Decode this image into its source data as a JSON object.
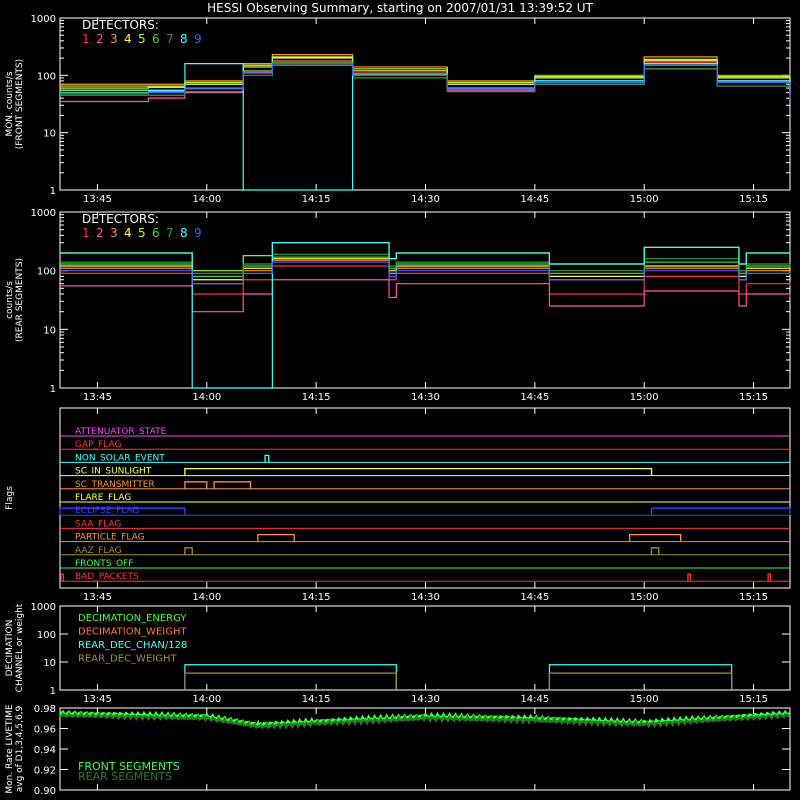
{
  "title": "HESSI Observing Summary, starting on 2007/01/31 13:39:52 UT",
  "time_ticks": [
    "13:45",
    "14:00",
    "14:15",
    "14:30",
    "14:45",
    "15:00",
    "15:15"
  ],
  "colors": {
    "det": [
      "#ff3040",
      "#ff4fb0",
      "#ff9030",
      "#ffff40",
      "#a0ff40",
      "#40d040",
      "#30a030",
      "#40ffff",
      "#4060ff"
    ]
  },
  "chart_data": [
    {
      "type": "line",
      "title": "",
      "ylabel": "MON. counts/s\n(FRONT SEGMENTS)",
      "ylog": true,
      "ylim": [
        1,
        1000
      ],
      "ytick_labels": [
        "1",
        "10",
        "100",
        "1000"
      ],
      "legend_title": "DETECTORS:",
      "legend": [
        "1",
        "2",
        "3",
        "4",
        "5",
        "6",
        "7",
        "8",
        "9"
      ],
      "x_unit": "UT",
      "x": [
        "13:39:52",
        "13:52",
        "13:57",
        "14:05",
        "14:09",
        "14:20",
        "14:33",
        "14:45",
        "15:00",
        "15:10",
        "15:20"
      ],
      "series": [
        {
          "name": "1",
          "values": [
            55,
            55,
            60,
            120,
            180,
            110,
            60,
            80,
            170,
            80,
            45
          ]
        },
        {
          "name": "2",
          "values": [
            35,
            40,
            50,
            110,
            150,
            90,
            55,
            70,
            130,
            65,
            38
          ]
        },
        {
          "name": "3",
          "values": [
            70,
            70,
            80,
            160,
            230,
            140,
            80,
            100,
            210,
            100,
            60
          ]
        },
        {
          "name": "4",
          "values": [
            60,
            62,
            70,
            140,
            200,
            120,
            70,
            90,
            180,
            90,
            50
          ]
        },
        {
          "name": "5",
          "values": [
            65,
            65,
            75,
            150,
            210,
            130,
            75,
            95,
            190,
            95,
            55
          ]
        },
        {
          "name": "6",
          "values": [
            50,
            52,
            60,
            120,
            170,
            105,
            60,
            80,
            150,
            75,
            45
          ]
        },
        {
          "name": "7",
          "values": [
            45,
            45,
            52,
            100,
            150,
            90,
            52,
            70,
            130,
            65,
            40
          ]
        },
        {
          "name": "8",
          "values": [
            55,
            55,
            160,
            1,
            1,
            100,
            60,
            80,
            160,
            80,
            45
          ]
        },
        {
          "name": "9",
          "values": [
            48,
            50,
            58,
            115,
            160,
            100,
            58,
            75,
            150,
            75,
            42
          ]
        }
      ]
    },
    {
      "type": "line",
      "title": "",
      "ylabel": "counts/s\n(REAR SEGMENTS)",
      "ylog": true,
      "ylim": [
        1,
        1000
      ],
      "ytick_labels": [
        "1",
        "10",
        "100",
        "1000"
      ],
      "legend_title": "DETECTORS:",
      "legend": [
        "1",
        "2",
        "3",
        "4",
        "5",
        "6",
        "7",
        "8",
        "9"
      ],
      "x_unit": "UT",
      "x": [
        "13:39:52",
        "13:57",
        "13:58",
        "14:05",
        "14:09",
        "14:25",
        "14:26",
        "14:46",
        "14:47",
        "15:00",
        "15:13",
        "15:14",
        "15:20"
      ],
      "series": [
        {
          "name": "1",
          "values": [
            90,
            90,
            40,
            70,
            120,
            70,
            90,
            90,
            40,
            80,
            40,
            60,
            55
          ]
        },
        {
          "name": "2",
          "values": [
            55,
            55,
            20,
            40,
            70,
            35,
            60,
            60,
            25,
            45,
            25,
            40,
            35
          ]
        },
        {
          "name": "3",
          "values": [
            110,
            110,
            60,
            100,
            150,
            90,
            110,
            110,
            70,
            110,
            70,
            100,
            90
          ]
        },
        {
          "name": "4",
          "values": [
            120,
            120,
            70,
            110,
            160,
            100,
            120,
            120,
            80,
            120,
            80,
            110,
            100
          ]
        },
        {
          "name": "5",
          "values": [
            200,
            200,
            100,
            180,
            300,
            160,
            200,
            200,
            130,
            250,
            130,
            200,
            180
          ]
        },
        {
          "name": "6",
          "values": [
            130,
            130,
            80,
            120,
            170,
            110,
            130,
            130,
            90,
            140,
            90,
            120,
            110
          ]
        },
        {
          "name": "7",
          "values": [
            140,
            140,
            90,
            130,
            190,
            120,
            140,
            140,
            100,
            160,
            100,
            130,
            120
          ]
        },
        {
          "name": "8",
          "values": [
            200,
            200,
            1,
            1,
            300,
            160,
            200,
            200,
            130,
            250,
            130,
            200,
            180
          ]
        },
        {
          "name": "9",
          "values": [
            100,
            100,
            60,
            90,
            140,
            80,
            100,
            100,
            70,
            100,
            70,
            90,
            85
          ]
        }
      ]
    },
    {
      "type": "flags",
      "ylabel": "Flags",
      "flags": [
        {
          "label": "ATTENUATOR_STATE",
          "color": "#ff40ff",
          "segments": []
        },
        {
          "label": "GAP_FLAG",
          "color": "#ff3040",
          "segments": []
        },
        {
          "label": "NON_SOLAR_EVENT",
          "color": "#40ffff",
          "segments": [
            [
              "14:08",
              "14:08:30"
            ]
          ]
        },
        {
          "label": "SC_IN_SUNLIGHT",
          "color": "#ffff40",
          "segments": [
            [
              "13:57",
              "15:01"
            ]
          ]
        },
        {
          "label": "SC_TRANSMITTER",
          "color": "#ff9030",
          "segments": [
            [
              "13:57",
              "14:00"
            ],
            [
              "14:01",
              "14:06"
            ]
          ]
        },
        {
          "label": "FLARE_FLAG",
          "color": "#ffff40",
          "segments": []
        },
        {
          "label": "ECLIPSE_FLAG",
          "color": "#3040ff",
          "segments": [
            [
              "13:39:52",
              "13:57"
            ],
            [
              "15:01",
              "15:20"
            ]
          ]
        },
        {
          "label": "SAA_FLAG",
          "color": "#ff3040",
          "segments": []
        },
        {
          "label": "PARTICLE_FLAG",
          "color": "#ff9030",
          "segments": [
            [
              "14:07",
              "14:12"
            ],
            [
              "14:58",
              "15:05"
            ]
          ]
        },
        {
          "label": "AAZ_FLAG",
          "color": "#a09030",
          "segments": [
            [
              "13:57",
              "13:58"
            ],
            [
              "15:01",
              "15:02"
            ]
          ]
        },
        {
          "label": "FRONTS_OFF",
          "color": "#40ff40",
          "segments": []
        },
        {
          "label": "BAD_PACKETS",
          "color": "#ff3040",
          "segments": [
            [
              "13:40",
              "13:40:20"
            ],
            [
              "15:06",
              "15:06:20"
            ],
            [
              "15:17",
              "15:17:20"
            ]
          ]
        }
      ]
    },
    {
      "type": "line",
      "ylabel": "DECIMATION\nCHANNEL or weight",
      "ylog": true,
      "ylim": [
        1,
        1000
      ],
      "ytick_labels": [
        "1",
        "10",
        "100",
        "1000"
      ],
      "legend": [
        {
          "name": "DECIMATION_ENERGY",
          "color": "#40ff40"
        },
        {
          "name": "DECIMATION_WEIGHT",
          "color": "#ff7040"
        },
        {
          "name": "REAR_DEC_CHAN/128",
          "color": "#40ffff"
        },
        {
          "name": "REAR_DEC_WEIGHT",
          "color": "#a09030"
        }
      ],
      "series": [
        {
          "name": "REAR_DEC_CHAN/128",
          "segments": [
            [
              "13:57",
              "14:26",
              8
            ],
            [
              "14:47",
              "15:12",
              8
            ]
          ]
        },
        {
          "name": "REAR_DEC_WEIGHT",
          "segments": [
            [
              "13:57",
              "14:26",
              4
            ],
            [
              "14:47",
              "15:12",
              4
            ]
          ]
        }
      ]
    },
    {
      "type": "line",
      "ylabel": "Mon. Rate LIVETIME\navg of D1,3,4,5,6,9",
      "ylim": [
        0.9,
        0.98
      ],
      "ytick_labels": [
        "0.90",
        "0.92",
        "0.94",
        "0.96",
        "0.98"
      ],
      "legend": [
        {
          "name": "FRONT SEGMENTS",
          "color": "#40ff40"
        },
        {
          "name": "REAR SEGMENTS",
          "color": "#208020"
        }
      ],
      "x": [
        "13:39:52",
        "14:00",
        "14:07",
        "14:15",
        "14:30",
        "14:45",
        "15:00",
        "15:20"
      ],
      "series": [
        {
          "name": "FRONT SEGMENTS",
          "values": [
            0.975,
            0.972,
            0.964,
            0.967,
            0.972,
            0.97,
            0.966,
            0.975
          ]
        },
        {
          "name": "REAR SEGMENTS",
          "values": [
            0.973,
            0.97,
            0.962,
            0.965,
            0.97,
            0.968,
            0.964,
            0.973
          ]
        }
      ]
    }
  ]
}
